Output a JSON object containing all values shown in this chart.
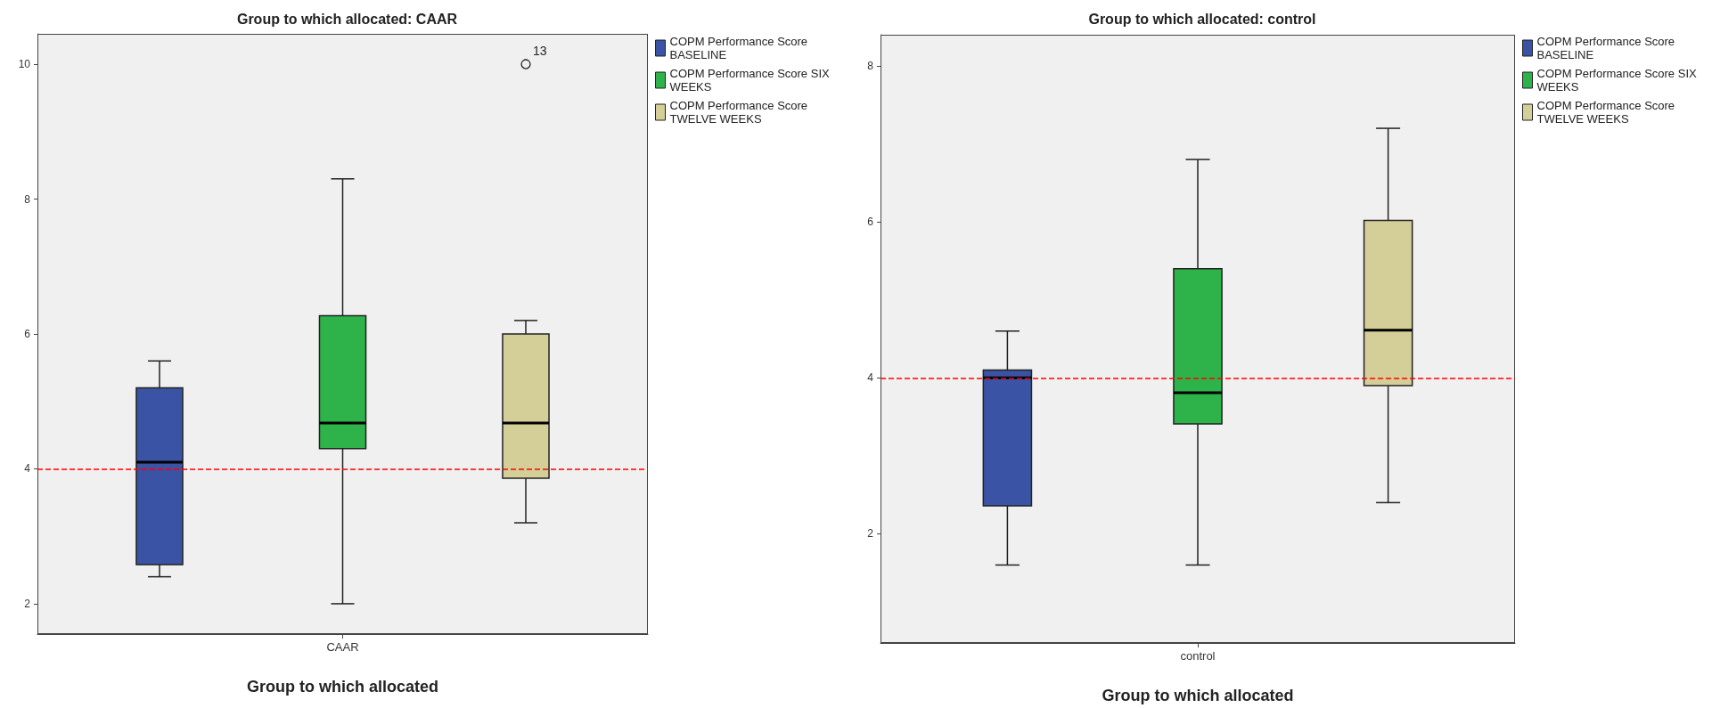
{
  "chart_data": [
    {
      "type": "box",
      "title": "Group to which allocated: CAAR",
      "xlabel": "Group to which allocated",
      "categories": [
        "CAAR"
      ],
      "ylim": [
        1.55,
        10.45
      ],
      "yticks": [
        2,
        4,
        6,
        8,
        10
      ],
      "grid": false,
      "legend": "top right",
      "series": [
        {
          "name": "COPM Performance Score BASELINE",
          "color": "#3a53a4",
          "boxes": [
            {
              "low": 2.4,
              "q1": 2.58,
              "median": 4.1,
              "q3": 5.2,
              "high": 5.6
            }
          ]
        },
        {
          "name": "COPM Performance Score SIX WEEKS",
          "color": "#2db34a",
          "boxes": [
            {
              "low": 2.0,
              "q1": 4.3,
              "median": 4.68,
              "q3": 6.27,
              "high": 8.3
            }
          ]
        },
        {
          "name": "COPM Performance Score TWELVE WEEKS",
          "color": "#d4cf98",
          "boxes": [
            {
              "low": 3.2,
              "q1": 3.86,
              "median": 4.68,
              "q3": 6.0,
              "high": 6.2,
              "outliers": [
                10
              ]
            }
          ]
        }
      ],
      "ref_lines": [
        {
          "axis": "y",
          "value": 4,
          "color": "#ff0000",
          "line_style": "dashed"
        }
      ],
      "annotations": [
        "13"
      ]
    },
    {
      "type": "box",
      "title": "Group to which allocated: control",
      "xlabel": "Group to which allocated",
      "categories": [
        "control"
      ],
      "ylim": [
        0.6,
        8.4
      ],
      "yticks": [
        2,
        4,
        6,
        8
      ],
      "grid": false,
      "legend": "top right",
      "series": [
        {
          "name": "COPM Performance Score BASELINE",
          "color": "#3a53a4",
          "boxes": [
            {
              "low": 1.6,
              "q1": 2.36,
              "median": 4.0,
              "q3": 4.1,
              "high": 4.6
            }
          ]
        },
        {
          "name": "COPM Performance Score SIX WEEKS",
          "color": "#2db34a",
          "boxes": [
            {
              "low": 1.6,
              "q1": 3.41,
              "median": 3.81,
              "q3": 5.4,
              "high": 6.8
            }
          ]
        },
        {
          "name": "COPM Performance Score TWELVE WEEKS",
          "color": "#d4cf98",
          "boxes": [
            {
              "low": 2.4,
              "q1": 3.9,
              "median": 4.61,
              "q3": 6.02,
              "high": 7.2
            }
          ]
        }
      ],
      "ref_lines": [
        {
          "axis": "y",
          "value": 4,
          "color": "#ff0000",
          "line_style": "dashed"
        }
      ]
    }
  ]
}
